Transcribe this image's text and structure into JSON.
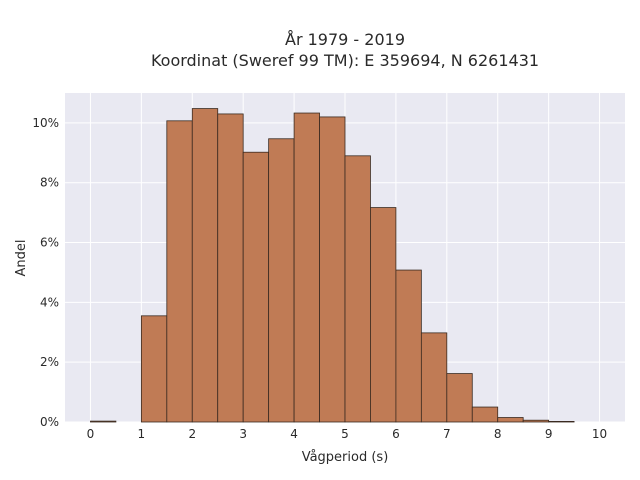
{
  "chart_data": {
    "type": "bar",
    "title": "År 1979 - 2019",
    "subtitle": "Koordinat (Sweref 99 TM): E 359694, N 6261431",
    "xlabel": "Vågperiod (s)",
    "ylabel": "Andel",
    "xlim": [
      -0.5,
      10.5
    ],
    "ylim": [
      0,
      11
    ],
    "x_ticks": [
      0,
      1,
      2,
      3,
      4,
      5,
      6,
      7,
      8,
      9,
      10
    ],
    "y_ticks": [
      0,
      2,
      4,
      6,
      8,
      10
    ],
    "y_tick_suffix": "%",
    "bin_width": 0.5,
    "bins": [
      {
        "x0": 0.0,
        "value": 0.03
      },
      {
        "x0": 0.5,
        "value": 0.0
      },
      {
        "x0": 1.0,
        "value": 3.55
      },
      {
        "x0": 1.5,
        "value": 10.07
      },
      {
        "x0": 2.0,
        "value": 10.48
      },
      {
        "x0": 2.5,
        "value": 10.3
      },
      {
        "x0": 3.0,
        "value": 9.02
      },
      {
        "x0": 3.5,
        "value": 9.47
      },
      {
        "x0": 4.0,
        "value": 10.33
      },
      {
        "x0": 4.5,
        "value": 10.2
      },
      {
        "x0": 5.0,
        "value": 8.9
      },
      {
        "x0": 5.5,
        "value": 7.17
      },
      {
        "x0": 6.0,
        "value": 5.08
      },
      {
        "x0": 6.5,
        "value": 2.98
      },
      {
        "x0": 7.0,
        "value": 1.62
      },
      {
        "x0": 7.5,
        "value": 0.5
      },
      {
        "x0": 8.0,
        "value": 0.15
      },
      {
        "x0": 8.5,
        "value": 0.06
      },
      {
        "x0": 9.0,
        "value": 0.02
      }
    ],
    "grid": true,
    "bar_color": "#c07b55",
    "bar_edge_color": "#3a2a20",
    "plot_bg": "#e9e9f2",
    "grid_color": "#ffffff"
  }
}
